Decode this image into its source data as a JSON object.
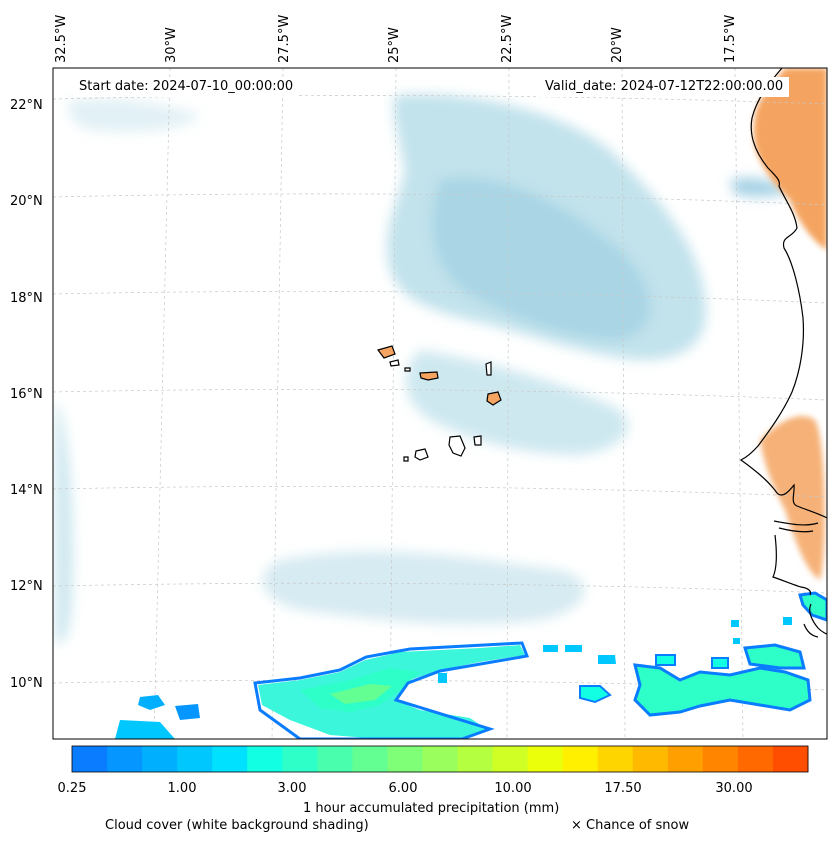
{
  "map": {
    "start_date": "Start date: 2024-07-10_00:00:00",
    "valid_date": "Valid_date: 2024-07-12T22:00:00.00",
    "lon_labels": [
      "32.5°W",
      "30°W",
      "27.5°W",
      "25°W",
      "22.5°W",
      "20°W",
      "17.5°W"
    ],
    "lat_labels": [
      "22°N",
      "20°N",
      "18°N",
      "16°N",
      "14°N",
      "12°N",
      "10°N"
    ],
    "land_color": "#f4a460",
    "cloud_color": "#add8e6"
  },
  "colorbar": {
    "tick_labels": [
      "0.25",
      "1.00",
      "3.00",
      "6.00",
      "10.00",
      "17.50",
      "30.00"
    ],
    "label": "1 hour accumulated precipitation (mm)",
    "colors": [
      "#0a7cff",
      "#0596ff",
      "#00b0ff",
      "#00c8ff",
      "#00e0ff",
      "#13ffe3",
      "#2effc8",
      "#49ffad",
      "#64ff92",
      "#7fff77",
      "#9aff5c",
      "#b5ff41",
      "#d0ff26",
      "#ebff0b",
      "#fff000",
      "#ffd500",
      "#ffba00",
      "#ff9f00",
      "#ff8400",
      "#ff6900",
      "#ff4e00"
    ]
  },
  "legend": {
    "cloud_label": "Cloud cover (white background shading)",
    "snow_label": "× Chance of snow"
  }
}
